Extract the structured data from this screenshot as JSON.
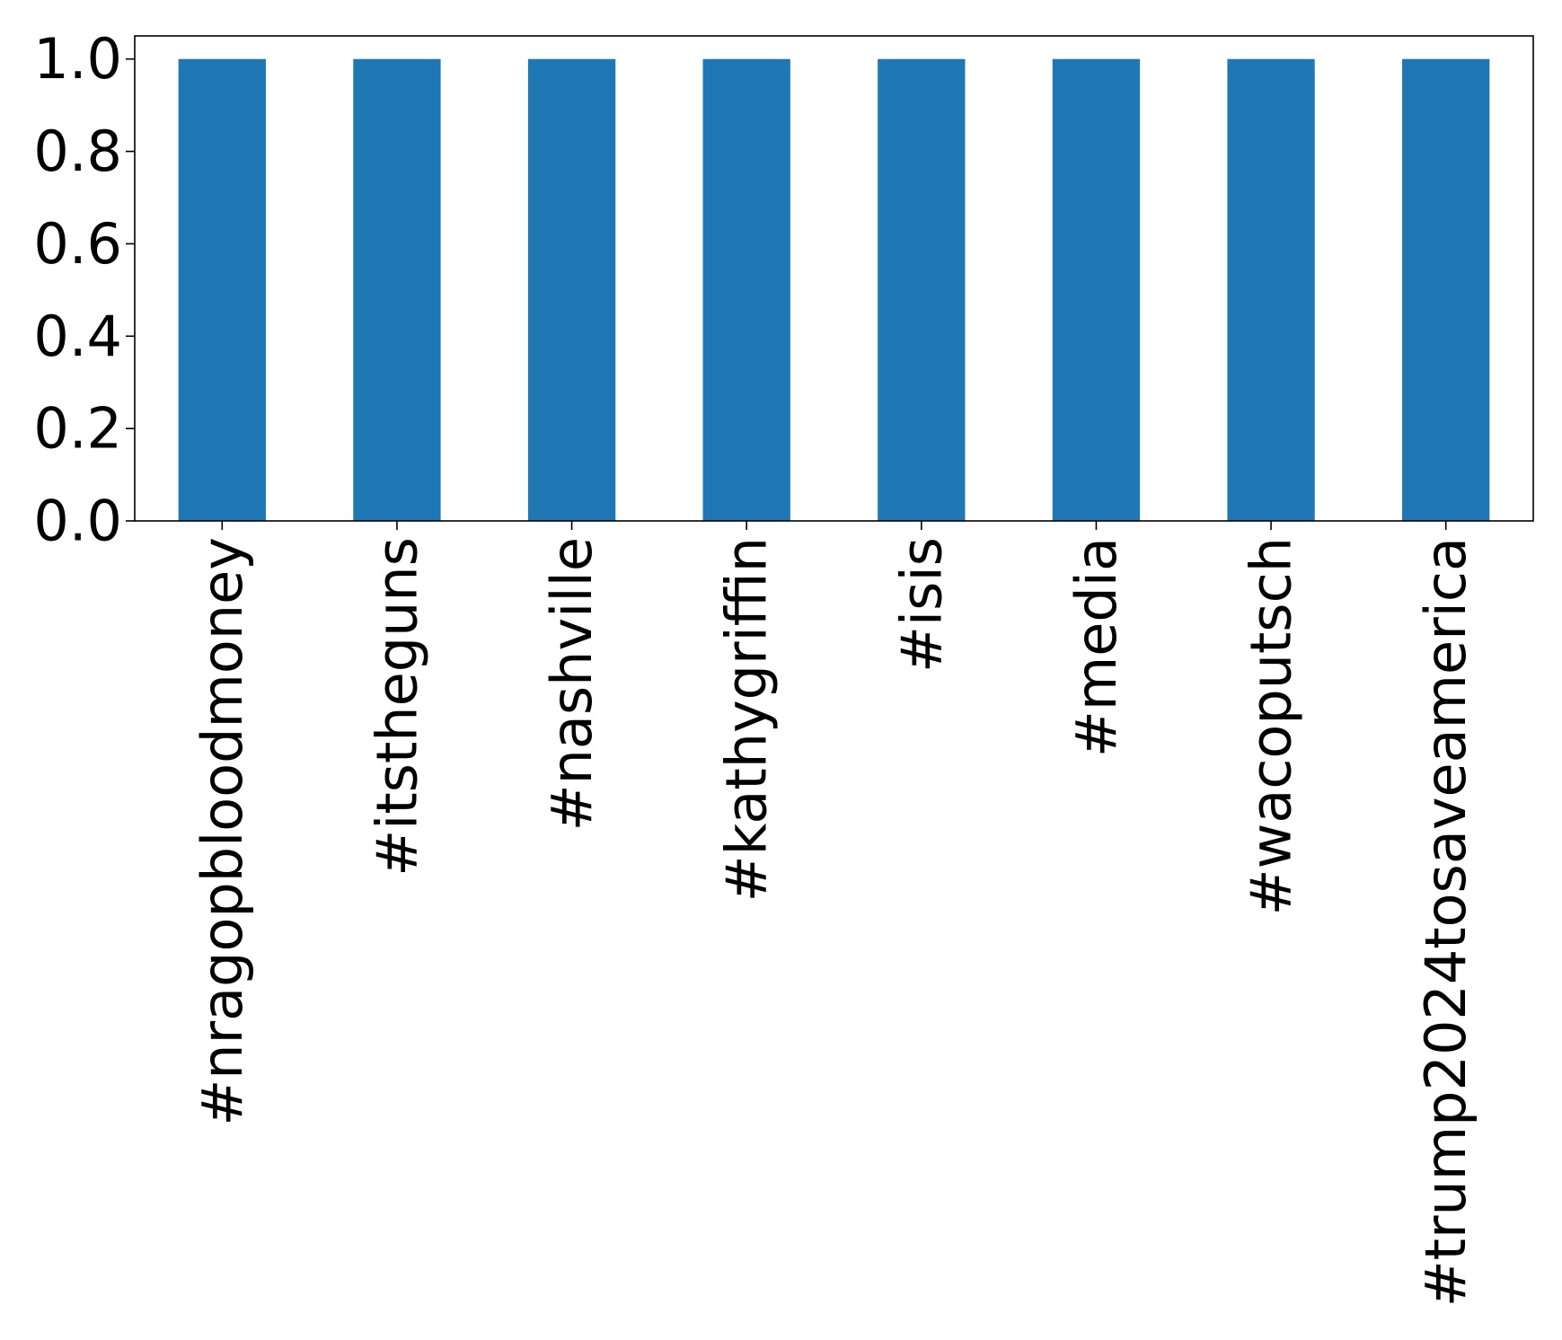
{
  "chart_data": {
    "type": "bar",
    "title": "",
    "xlabel": "",
    "ylabel": "",
    "categories": [
      "#nragopbloodmoney",
      "#itstheguns",
      "#nashville",
      "#kathygriffin",
      "#isis",
      "#media",
      "#wacoputsch",
      "#trump2024tosaveamerica"
    ],
    "values": [
      1.0,
      1.0,
      1.0,
      1.0,
      1.0,
      1.0,
      1.0,
      1.0
    ],
    "ylim": [
      0.0,
      1.05
    ],
    "yticks": [
      0.0,
      0.2,
      0.4,
      0.6,
      0.8,
      1.0
    ],
    "ytick_labels": [
      "0.0",
      "0.2",
      "0.4",
      "0.6",
      "0.8",
      "1.0"
    ],
    "grid": false,
    "legend": "none",
    "colors": {
      "bar": "#1f77b4",
      "axis": "#000000",
      "background": "#ffffff"
    }
  }
}
